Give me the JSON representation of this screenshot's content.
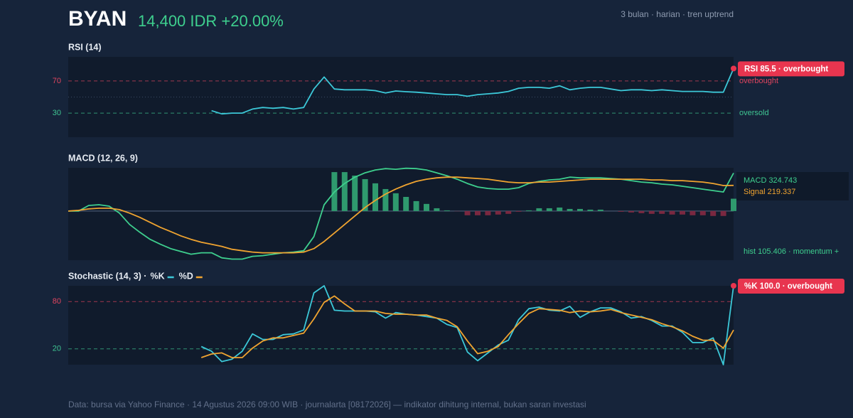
{
  "header": {
    "ticker": "BYAN",
    "price": "14,400 IDR +20.00%",
    "meta": "3 bulan · harian · tren uptrend"
  },
  "footer": "Data: bursa via Yahoo Finance · 14 Agustus 2026 09:00 WIB · journalarta [08172026] — indikator dihitung internal, bukan saran investasi",
  "chart_data": [
    {
      "type": "line",
      "title": "RSI (14)",
      "ylim": [
        0,
        100
      ],
      "yticks": [
        30,
        70
      ],
      "level_labels": [
        "oversold",
        "overbought"
      ],
      "level_colors": [
        "#3fc592",
        "#e0455f"
      ],
      "midline": 50,
      "badge": "RSI 85.5 · overbought",
      "badge_color": "#e8354f",
      "series": [
        {
          "color": "#3cc8d8",
          "values": [
            null,
            null,
            null,
            null,
            null,
            null,
            null,
            null,
            null,
            null,
            null,
            null,
            null,
            null,
            33,
            29,
            30,
            30,
            35,
            37,
            36,
            37,
            35,
            37,
            60,
            75,
            60,
            59,
            59,
            59,
            58,
            55,
            57.5,
            56.6,
            56,
            55,
            54,
            53,
            53,
            51,
            53,
            54,
            55,
            57,
            61,
            62,
            62,
            61,
            64,
            59,
            61,
            62,
            62,
            60,
            58,
            59,
            59,
            58,
            59,
            58,
            57,
            57,
            57,
            56,
            56,
            85.5
          ]
        }
      ]
    },
    {
      "type": "line",
      "title": "MACD (12, 26, 9)",
      "ylim": [
        -420,
        370
      ],
      "zero_line": true,
      "series": [
        {
          "kind": "bar",
          "label": "hist 105.406 · momentum +",
          "color": "#2f9a6e",
          "negative_color": "#7a2840",
          "values": [
            null,
            null,
            null,
            null,
            null,
            null,
            null,
            null,
            null,
            null,
            null,
            null,
            null,
            null,
            null,
            null,
            null,
            null,
            null,
            null,
            null,
            null,
            null,
            null,
            null,
            null,
            333,
            333,
            303,
            273,
            237,
            188,
            152,
            121,
            85,
            61,
            24,
            6,
            -2,
            -36,
            -36,
            -36,
            -30,
            -24,
            -6,
            6,
            24,
            24,
            30,
            18,
            18,
            12,
            12,
            0,
            -6,
            -12,
            -18,
            -24,
            -24,
            -30,
            -30,
            -36,
            -36,
            -42,
            -42,
            105.406
          ]
        },
        {
          "kind": "line",
          "label": "MACD 324.743",
          "color": "#3ecf8e",
          "values": [
            0,
            0,
            48,
            54,
            42,
            -18,
            -115,
            -182,
            -242,
            -284,
            -321,
            -345,
            -369,
            -357,
            -357,
            -400,
            -411,
            -411,
            -387,
            -381,
            -369,
            -357,
            -351,
            -339,
            -218,
            54,
            163,
            236,
            290,
            327,
            351,
            363,
            357,
            366,
            363,
            351,
            327,
            302,
            272,
            236,
            206,
            193,
            187,
            187,
            200,
            236,
            254,
            266,
            272,
            290,
            284,
            284,
            284,
            278,
            272,
            260,
            248,
            242,
            230,
            224,
            212,
            200,
            187,
            175,
            163,
            324.743
          ]
        },
        {
          "kind": "line",
          "label": "Signal 219.337",
          "color": "#f0a430",
          "values": [
            0,
            6,
            18,
            24,
            24,
            12,
            -18,
            -54,
            -97,
            -139,
            -175,
            -212,
            -242,
            -266,
            -284,
            -302,
            -327,
            -339,
            -351,
            -357,
            -357,
            -357,
            -357,
            -351,
            -321,
            -260,
            -188,
            -115,
            -42,
            30,
            91,
            145,
            188,
            224,
            254,
            272,
            284,
            290,
            290,
            284,
            278,
            272,
            260,
            248,
            242,
            242,
            248,
            248,
            254,
            260,
            266,
            272,
            272,
            272,
            272,
            272,
            272,
            266,
            266,
            260,
            260,
            254,
            248,
            236,
            218,
            219.337
          ]
        }
      ]
    },
    {
      "type": "line",
      "title": "Stochastic (14, 3) ·",
      "ylim": [
        0,
        100
      ],
      "yticks": [
        20,
        80
      ],
      "level_colors": [
        "#3fc592",
        "#e0455f"
      ],
      "badge": "%K 100.0 · overbought",
      "badge_color": "#e8354f",
      "series": [
        {
          "name": "%K",
          "color": "#3cc8d8",
          "values": [
            null,
            null,
            null,
            null,
            null,
            null,
            null,
            null,
            null,
            null,
            null,
            null,
            null,
            23,
            17,
            4,
            7,
            17,
            39,
            32,
            32,
            38,
            39,
            44,
            91,
            100,
            69,
            68,
            68,
            68,
            67,
            59,
            66,
            64,
            63,
            61,
            59,
            51,
            47,
            16,
            5,
            15,
            25,
            31,
            57,
            71,
            73,
            69,
            68,
            74,
            60,
            67,
            72,
            72,
            67,
            59,
            61,
            56,
            49,
            49,
            41,
            28,
            28,
            34,
            0,
            100
          ]
        },
        {
          "name": "%D",
          "color": "#f0a430",
          "values": [
            null,
            null,
            null,
            null,
            null,
            null,
            null,
            null,
            null,
            null,
            null,
            null,
            null,
            9,
            13.5,
            15,
            9,
            9,
            21,
            30,
            34,
            34,
            37,
            40,
            58,
            79,
            87,
            77,
            68,
            68,
            68,
            65,
            64,
            64,
            63,
            63,
            59,
            56,
            48,
            30,
            14,
            17,
            23,
            38,
            52,
            65,
            71,
            70,
            69,
            66,
            68,
            67,
            68,
            70,
            66,
            63,
            60,
            57,
            52,
            48,
            43,
            36,
            31,
            31,
            21,
            44
          ]
        }
      ]
    }
  ]
}
